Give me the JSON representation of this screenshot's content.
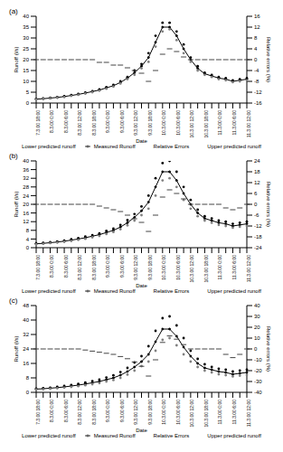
{
  "chart_data": [
    {
      "type": "line",
      "title": "(a)",
      "x_label": "Date",
      "y_label": "Runoff (l/s)",
      "y2_label": "Relative errors (%)",
      "categories": [
        "7.3.00 18:00",
        null,
        "8.3.00 0:00",
        null,
        "8.3.00 6:00",
        null,
        "8.3.00 12:00",
        null,
        "8.3.00 18:00",
        null,
        "9.3.00 0:00",
        null,
        "9.3.00 6:00",
        null,
        "9.3.00 12:00",
        null,
        "9.3.00 18:00",
        null,
        "10.3.00 0:00",
        null,
        "10.3.00 6:00",
        null,
        "10.3.00 12:00",
        null,
        "10.3.00 18:00",
        null,
        "11.3.00 0:00",
        null,
        "11.3.00 6:00",
        null,
        "11.3.00 12:00"
      ],
      "ylim": [
        0,
        40
      ],
      "yticks": [
        0,
        5,
        10,
        15,
        20,
        25,
        30,
        35,
        40
      ],
      "y2lim": [
        -16,
        16
      ],
      "y2ticks": [
        -16,
        -12,
        -8,
        -4,
        0,
        4,
        8,
        12,
        16
      ],
      "series": [
        {
          "name": "Measured Runoff",
          "type": "line",
          "marker": "circle",
          "color": "#000000",
          "values": [
            1.8,
            2.0,
            2.3,
            2.6,
            3.0,
            3.5,
            4.0,
            4.6,
            5.3,
            6.0,
            7.0,
            8.0,
            9.5,
            11.5,
            14,
            17,
            21,
            28,
            35,
            35,
            31,
            25,
            20,
            16,
            13.5,
            12.5,
            11.5,
            11,
            10,
            10.5,
            11
          ]
        },
        {
          "name": "Upper predicted runoff",
          "type": "scatter",
          "marker": "circle",
          "color": "#000000",
          "values": [
            1.9,
            2.1,
            2.4,
            2.8,
            3.2,
            3.7,
            4.2,
            4.8,
            5.5,
            6.3,
            7.3,
            8.4,
            10,
            12,
            15,
            18,
            23,
            31,
            37,
            37,
            33,
            27,
            21,
            17,
            14,
            13,
            12,
            11.5,
            10.5,
            11,
            11.5
          ]
        },
        {
          "name": "Lower predicted runoff",
          "type": "scatter",
          "marker": "circle",
          "color": "#808080",
          "values": [
            1.7,
            1.9,
            2.2,
            2.5,
            2.8,
            3.3,
            3.8,
            4.4,
            5.0,
            5.7,
            6.6,
            7.6,
            9,
            11,
            13,
            16,
            19,
            26,
            33,
            34,
            29,
            23,
            19,
            15,
            13,
            12,
            11,
            10.5,
            9.6,
            10,
            10.5
          ]
        },
        {
          "name": "Relative Errors",
          "type": "scatter",
          "marker": "dash",
          "color": "#444444",
          "axis": "y2",
          "values": [
            0,
            0,
            0,
            0,
            0,
            0,
            0,
            0,
            0,
            -1,
            -1,
            -2,
            -2,
            -3,
            -4,
            -5,
            -8,
            -4,
            2,
            4,
            3,
            1,
            0,
            0,
            0,
            0,
            0,
            0,
            0,
            0,
            0
          ]
        }
      ]
    },
    {
      "type": "line",
      "title": "(b)",
      "x_label": "Date",
      "y_label": "Runoff (l/s)",
      "y2_label": "Relative errors (%)",
      "categories": [
        "7.3.00 18:00",
        null,
        "8.3.00 0:00",
        null,
        "8.3.00 6:00",
        null,
        "8.3.00 12:00",
        null,
        "8.3.00 18:00",
        null,
        "9.3.00 0:00",
        null,
        "9.3.00 6:00",
        null,
        "9.3.00 12:00",
        null,
        "9.3.00 18:00",
        null,
        "10.3.00 0:00",
        null,
        "10.3.00 6:00",
        null,
        "10.3.00 12:00",
        null,
        "10.3.00 18:00",
        null,
        "11.3.00 0:00",
        null,
        "11.3.00 6:00",
        null,
        "11.3.00 12:00"
      ],
      "ylim": [
        0,
        40
      ],
      "yticks": [
        0,
        4,
        8,
        12,
        16,
        20,
        24,
        28,
        32,
        36,
        40
      ],
      "y2lim": [
        -24,
        24
      ],
      "y2ticks": [
        -24,
        -18,
        -12,
        -6,
        0,
        6,
        12,
        18,
        24
      ],
      "series": [
        {
          "name": "Measured Runoff",
          "type": "line",
          "marker": "circle",
          "color": "#000000",
          "values": [
            1.8,
            2.0,
            2.3,
            2.6,
            3.0,
            3.5,
            4.0,
            4.6,
            5.3,
            6.0,
            7.0,
            8.0,
            9.5,
            11.5,
            14,
            17,
            21,
            28,
            35,
            35,
            31,
            25,
            20,
            16,
            13.5,
            12.5,
            11.5,
            11,
            10,
            10.5,
            11
          ]
        },
        {
          "name": "Upper predicted runoff",
          "type": "scatter",
          "marker": "circle",
          "color": "#000000",
          "values": [
            2.0,
            2.2,
            2.5,
            2.9,
            3.3,
            3.9,
            4.4,
            5.1,
            5.8,
            6.6,
            7.7,
            8.8,
            10.5,
            12.7,
            15.5,
            19,
            24,
            32,
            39,
            40,
            35,
            28,
            22,
            17.5,
            14.5,
            13.5,
            12.5,
            12,
            11,
            11.5,
            12
          ]
        },
        {
          "name": "Lower predicted runoff",
          "type": "scatter",
          "marker": "circle",
          "color": "#808080",
          "values": [
            1.6,
            1.8,
            2.1,
            2.4,
            2.7,
            3.1,
            3.6,
            4.1,
            4.8,
            5.4,
            6.3,
            7.2,
            8.5,
            10.3,
            12.5,
            15,
            18,
            24,
            31,
            32,
            28,
            22,
            18,
            14.5,
            12.5,
            11.5,
            10.5,
            10,
            9.2,
            9.6,
            10
          ]
        },
        {
          "name": "Relative Errors",
          "type": "scatter",
          "marker": "dash",
          "color": "#444444",
          "axis": "y2",
          "values": [
            0,
            0,
            0,
            0,
            0,
            0,
            0,
            0,
            0,
            -1,
            -2,
            -3,
            -4,
            -6,
            -8,
            -10,
            -15,
            -6,
            4,
            8,
            6,
            3,
            0,
            0,
            0,
            0,
            0,
            -2,
            -3,
            -2,
            0
          ]
        }
      ]
    },
    {
      "type": "line",
      "title": "(c)",
      "x_label": "Date",
      "y_label": "Runoff (l/s)",
      "y2_label": "Relative errors (%)",
      "categories": [
        "7.3.00 18:00",
        null,
        "8.3.00 0:00",
        null,
        "8.3.00 6:00",
        null,
        "8.3.00 12:00",
        null,
        "8.3.00 18:00",
        null,
        "9.3.00 0:00",
        null,
        "9.3.00 6:00",
        null,
        "9.3.00 12:00",
        null,
        "9.3.00 18:00",
        null,
        "10.3.00 0:00",
        null,
        "10.3.00 6:00",
        null,
        "10.3.00 12:00",
        null,
        "10.3.00 18:00",
        null,
        "11.3.00 0:00",
        null,
        "11.3.00 6:00",
        null,
        "11.3.00 12:00"
      ],
      "ylim": [
        0,
        48
      ],
      "yticks": [
        0,
        8,
        16,
        24,
        32,
        40,
        48
      ],
      "y2lim": [
        -40,
        40
      ],
      "y2ticks": [
        -40,
        -30,
        -20,
        -10,
        0,
        10,
        20,
        30,
        40
      ],
      "series": [
        {
          "name": "Measured Runoff",
          "type": "line",
          "marker": "circle",
          "color": "#000000",
          "values": [
            1.8,
            2.0,
            2.3,
            2.6,
            3.0,
            3.5,
            4.0,
            4.6,
            5.3,
            6.0,
            7.0,
            8.0,
            9.5,
            11.5,
            14,
            17,
            21,
            28,
            35,
            35,
            31,
            25,
            20,
            16,
            13.5,
            12.5,
            11.5,
            11,
            10,
            10.5,
            11
          ]
        },
        {
          "name": "Upper predicted runoff",
          "type": "scatter",
          "marker": "circle",
          "color": "#000000",
          "values": [
            2.0,
            2.3,
            2.6,
            3.0,
            3.5,
            4.1,
            4.7,
            5.4,
            6.2,
            7.0,
            8.2,
            9.4,
            11.2,
            13.5,
            16.5,
            20,
            25.5,
            34,
            41,
            42,
            37,
            30,
            23,
            18.5,
            15.5,
            14,
            13,
            12.5,
            11.5,
            12,
            12.5
          ]
        },
        {
          "name": "Lower predicted runoff",
          "type": "scatter",
          "marker": "circle",
          "color": "#808080",
          "values": [
            1.5,
            1.7,
            2.0,
            2.3,
            2.6,
            3.0,
            3.4,
            3.9,
            4.5,
            5.1,
            6.0,
            6.8,
            8.0,
            9.8,
            12,
            14.5,
            17,
            23,
            29,
            30,
            26,
            21,
            17,
            14,
            12,
            11,
            10,
            9.5,
            8.8,
            9.2,
            9.6
          ]
        },
        {
          "name": "Relative Errors",
          "type": "scatter",
          "marker": "dash",
          "color": "#444444",
          "axis": "y2",
          "values": [
            0,
            0,
            0,
            0,
            0,
            0,
            0,
            -1,
            -2,
            -3,
            -4,
            -5,
            -7,
            -9,
            -12,
            -16,
            -25,
            -10,
            6,
            12,
            9,
            4,
            0,
            0,
            0,
            0,
            0,
            -5,
            -8,
            -5,
            0
          ]
        }
      ]
    }
  ]
}
